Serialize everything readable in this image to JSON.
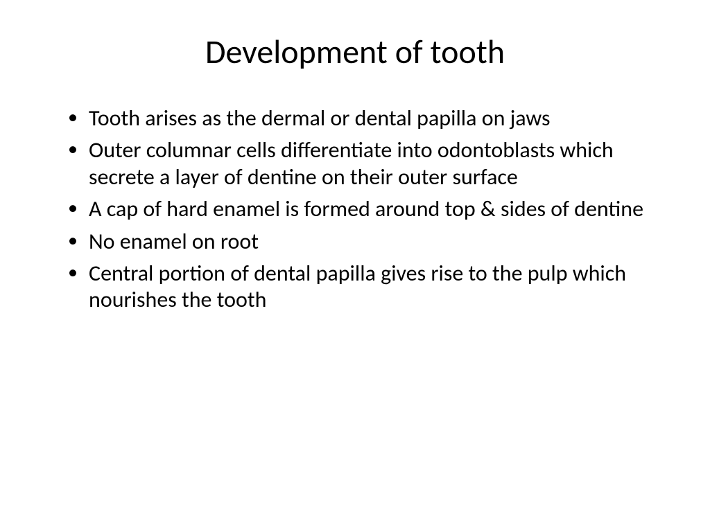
{
  "slide": {
    "title": "Development of tooth",
    "bullets": [
      "Tooth arises as the dermal or dental papilla on jaws",
      "Outer columnar cells differentiate into odontoblasts which secrete a layer of dentine on their outer surface",
      "A cap of hard enamel is formed around top & sides of dentine",
      "No enamel on root",
      "Central portion of dental papilla gives rise to the pulp which nourishes the tooth"
    ]
  },
  "styling": {
    "background_color": "#ffffff",
    "text_color": "#000000",
    "title_fontsize": 48,
    "title_fontweight": 400,
    "bullet_fontsize": 32,
    "font_family": "Calibri",
    "slide_width": 1024,
    "slide_height": 768,
    "title_align": "center",
    "bullet_marker": "•"
  }
}
